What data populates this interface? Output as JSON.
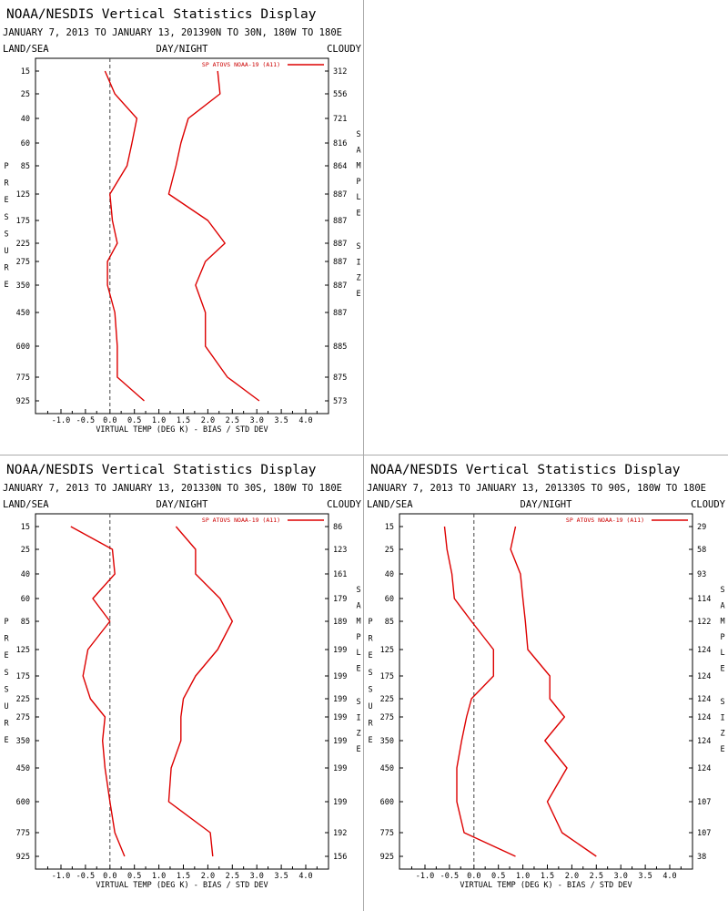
{
  "charts": [
    {
      "id": "p1",
      "title": "NOAA/NESDIS Vertical Statistics Display",
      "subtitle": "JANUARY 7, 2013 TO JANUARY 13, 201390N TO 30N, 180W TO 180E",
      "left_header": "LAND/SEA",
      "center_header": "DAY/NIGHT",
      "right_header": "CLOUDY",
      "legend": "SP ATOVS NOAA-19 (A11)",
      "side_left": "PRESSURE",
      "side_right_1": "SAMPLE",
      "side_right_2": "SIZE",
      "xlabel": "VIRTUAL TEMP (DEG K) - BIAS / STD DEV"
    },
    {
      "id": "p2",
      "title": "NOAA/NESDIS Vertical Statistics Display",
      "subtitle": "JANUARY 7, 2013 TO JANUARY 13, 201330N TO 30S, 180W TO 180E",
      "left_header": "LAND/SEA",
      "center_header": "DAY/NIGHT",
      "right_header": "CLOUDY",
      "legend": "SP ATOVS NOAA-19 (A11)",
      "side_left": "PRESSURE",
      "side_right_1": "SAMPLE",
      "side_right_2": "SIZE",
      "xlabel": "VIRTUAL TEMP (DEG K) - BIAS / STD DEV"
    },
    {
      "id": "p3",
      "title": "NOAA/NESDIS Vertical Statistics Display",
      "subtitle": "JANUARY 7, 2013 TO JANUARY 13, 201330S TO 90S, 180W TO 180E",
      "left_header": "LAND/SEA",
      "center_header": "DAY/NIGHT",
      "right_header": "CLOUDY",
      "legend": "SP ATOVS NOAA-19 (A11)",
      "side_left": "PRESSURE",
      "side_right_1": "SAMPLE",
      "side_right_2": "SIZE",
      "xlabel": "VIRTUAL TEMP (DEG K) - BIAS / STD DEV"
    }
  ],
  "chart_data": [
    {
      "type": "line",
      "panel": "p1",
      "xlim": [
        -1.5,
        4.5
      ],
      "xticks": [
        "-1.0",
        "-0.5",
        "0.0",
        "0.5",
        "1.0",
        "1.5",
        "2.0",
        "2.5",
        "3.0",
        "3.5",
        "4.0"
      ],
      "pressure_levels": [
        "15",
        "25",
        "40",
        "60",
        "85",
        "125",
        "175",
        "225",
        "275",
        "350",
        "450",
        "600",
        "775",
        "925"
      ],
      "sample_size": [
        "312",
        "556",
        "721",
        "816",
        "864",
        "887",
        "887",
        "887",
        "887",
        "887",
        "887",
        "885",
        "875",
        "573"
      ],
      "series": [
        {
          "name": "BIAS",
          "color": "#dd0000",
          "values": [
            -0.1,
            0.1,
            0.55,
            0.45,
            0.35,
            0.0,
            0.05,
            0.15,
            -0.05,
            -0.05,
            0.1,
            0.15,
            0.15,
            0.7
          ]
        },
        {
          "name": "STD DEV",
          "color": "#dd0000",
          "values": [
            2.2,
            2.25,
            1.6,
            1.45,
            1.35,
            1.2,
            2.0,
            2.35,
            1.95,
            1.75,
            1.95,
            1.95,
            2.4,
            3.05
          ]
        }
      ]
    },
    {
      "type": "line",
      "panel": "p2",
      "xlim": [
        -1.5,
        4.5
      ],
      "xticks": [
        "-1.0",
        "-0.5",
        "0.0",
        "0.5",
        "1.0",
        "1.5",
        "2.0",
        "2.5",
        "3.0",
        "3.5",
        "4.0"
      ],
      "pressure_levels": [
        "15",
        "25",
        "40",
        "60",
        "85",
        "125",
        "175",
        "225",
        "275",
        "350",
        "450",
        "600",
        "775",
        "925"
      ],
      "sample_size": [
        "86",
        "123",
        "161",
        "179",
        "189",
        "199",
        "199",
        "199",
        "199",
        "199",
        "199",
        "199",
        "192",
        "156"
      ],
      "series": [
        {
          "name": "BIAS",
          "color": "#dd0000",
          "values": [
            -0.8,
            0.05,
            0.1,
            -0.35,
            0.0,
            -0.45,
            -0.55,
            -0.4,
            -0.1,
            -0.15,
            -0.1,
            0.0,
            0.1,
            0.3
          ]
        },
        {
          "name": "STD DEV",
          "color": "#dd0000",
          "values": [
            1.35,
            1.75,
            1.75,
            2.25,
            2.5,
            2.2,
            1.75,
            1.5,
            1.45,
            1.45,
            1.25,
            1.2,
            2.05,
            2.1
          ]
        }
      ]
    },
    {
      "type": "line",
      "panel": "p3",
      "xlim": [
        -1.5,
        4.5
      ],
      "xticks": [
        "-1.0",
        "-0.5",
        "0.0",
        "0.5",
        "1.0",
        "1.5",
        "2.0",
        "2.5",
        "3.0",
        "3.5",
        "4.0"
      ],
      "pressure_levels": [
        "15",
        "25",
        "40",
        "60",
        "85",
        "125",
        "175",
        "225",
        "275",
        "350",
        "450",
        "600",
        "775",
        "925"
      ],
      "sample_size": [
        "29",
        "58",
        "93",
        "114",
        "122",
        "124",
        "124",
        "124",
        "124",
        "124",
        "124",
        "107",
        "107",
        "38"
      ],
      "series": [
        {
          "name": "BIAS",
          "color": "#dd0000",
          "values": [
            -0.6,
            -0.55,
            -0.45,
            -0.4,
            -0.05,
            0.4,
            0.4,
            -0.05,
            -0.15,
            -0.25,
            -0.35,
            -0.35,
            -0.2,
            0.85
          ]
        },
        {
          "name": "STD DEV",
          "color": "#dd0000",
          "values": [
            0.85,
            0.75,
            0.95,
            1.0,
            1.05,
            1.1,
            1.55,
            1.55,
            1.85,
            1.45,
            1.9,
            1.5,
            1.8,
            2.5
          ]
        }
      ]
    }
  ]
}
